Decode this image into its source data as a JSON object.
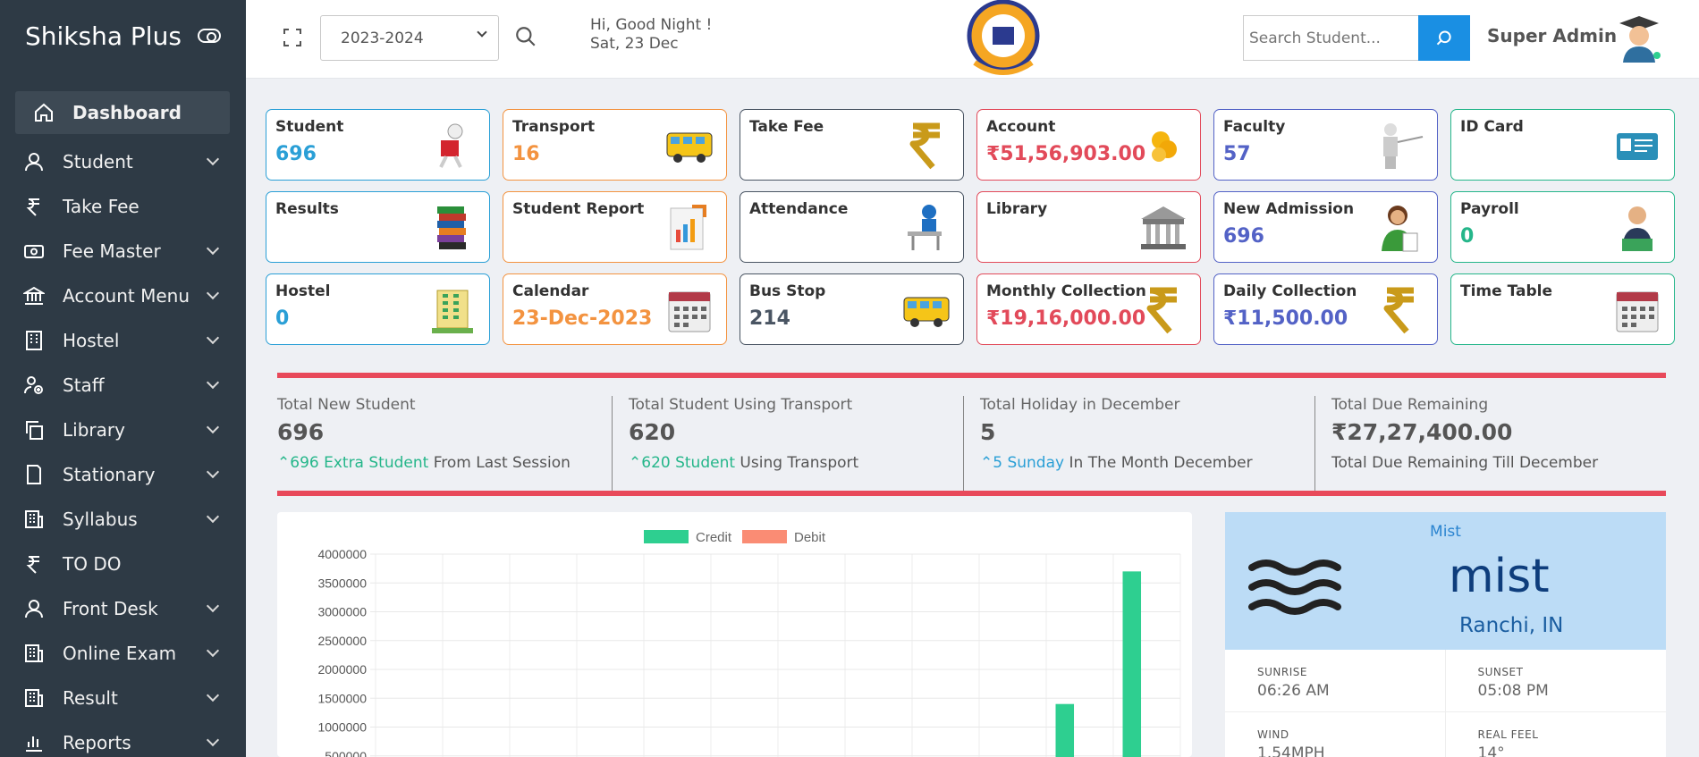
{
  "brand": {
    "title": "Shiksha Plus"
  },
  "sidebar": {
    "items": [
      {
        "label": "Dashboard",
        "icon": "home-icon",
        "active": true,
        "expandable": false
      },
      {
        "label": "Student",
        "icon": "user-icon",
        "expandable": true
      },
      {
        "label": "Take Fee",
        "icon": "rupee-icon",
        "expandable": false
      },
      {
        "label": "Fee Master",
        "icon": "money-icon",
        "expandable": true
      },
      {
        "label": "Account Menu",
        "icon": "bank-icon",
        "expandable": true
      },
      {
        "label": "Hostel",
        "icon": "building-icon",
        "expandable": true
      },
      {
        "label": "Staff",
        "icon": "staff-icon",
        "expandable": true
      },
      {
        "label": "Library",
        "icon": "copy-icon",
        "expandable": true
      },
      {
        "label": "Stationary",
        "icon": "notebook-icon",
        "expandable": true
      },
      {
        "label": "Syllabus",
        "icon": "grid-building-icon",
        "expandable": true
      },
      {
        "label": "TO DO",
        "icon": "rupee-icon",
        "expandable": false
      },
      {
        "label": "Front Desk",
        "icon": "user-icon",
        "expandable": true
      },
      {
        "label": "Online Exam",
        "icon": "grid-building-icon",
        "expandable": true
      },
      {
        "label": "Result",
        "icon": "grid-building-icon",
        "expandable": true
      },
      {
        "label": "Reports",
        "icon": "bar-chart-icon",
        "expandable": true
      }
    ]
  },
  "header": {
    "session": "2023-2024",
    "greeting_line1": "Hi, Good Night !",
    "greeting_line2": "Sat, 23 Dec",
    "search_placeholder": "Search Student...",
    "user_name": "Super Admin"
  },
  "cards": [
    {
      "title": "Student",
      "value": "696",
      "color": "blue",
      "icon": "student-reading-icon"
    },
    {
      "title": "Transport",
      "value": "16",
      "color": "orange",
      "icon": "bus-icon"
    },
    {
      "title": "Take Fee",
      "value": "",
      "color": "dark",
      "icon": "gold-rupee-icon"
    },
    {
      "title": "Account",
      "value": "₹51,56,903.00",
      "color": "red",
      "icon": "coins-icon"
    },
    {
      "title": "Faculty",
      "value": "57",
      "color": "indigo",
      "icon": "teacher-icon"
    },
    {
      "title": "ID Card",
      "value": "",
      "color": "green",
      "icon": "id-card-icon"
    },
    {
      "title": "Results",
      "value": "",
      "color": "blue",
      "icon": "books-icon"
    },
    {
      "title": "Student Report",
      "value": "",
      "color": "orange",
      "icon": "report-icon"
    },
    {
      "title": "Attendance",
      "value": "",
      "color": "dark",
      "icon": "desk-student-icon"
    },
    {
      "title": "Library",
      "value": "",
      "color": "red",
      "icon": "library-building-icon"
    },
    {
      "title": "New Admission",
      "value": "696",
      "color": "indigo",
      "icon": "admission-icon"
    },
    {
      "title": "Payroll",
      "value": "0",
      "color": "green",
      "icon": "payroll-icon"
    },
    {
      "title": "Hostel",
      "value": "0",
      "color": "blue",
      "icon": "hostel-icon"
    },
    {
      "title": "Calendar",
      "value": "23-Dec-2023",
      "color": "orange",
      "icon": "calendar-icon"
    },
    {
      "title": "Bus Stop",
      "value": "214",
      "color": "dark",
      "icon": "bus-icon"
    },
    {
      "title": "Monthly Collection",
      "value": "₹19,16,000.00",
      "color": "red",
      "icon": "gold-rupee-icon"
    },
    {
      "title": "Daily Collection",
      "value": "₹11,500.00",
      "color": "indigo",
      "icon": "gold-rupee-icon"
    },
    {
      "title": "Time Table",
      "value": "",
      "color": "green",
      "icon": "calendar-icon"
    }
  ],
  "stats": [
    {
      "title": "Total New Student",
      "value": "696",
      "highlight": "696 Extra Student",
      "note": " From Last Session",
      "hl": "green"
    },
    {
      "title": "Total Student Using Transport",
      "value": "620",
      "highlight": "620 Student",
      "note": " Using Transport",
      "hl": "green"
    },
    {
      "title": "Total Holiday in December",
      "value": "5",
      "highlight": "5 Sunday",
      "note": " In The Month December",
      "hl": "blue"
    },
    {
      "title": "Total Due Remaining",
      "value": "₹27,27,400.00",
      "highlight": "",
      "note": "Total Due Remaining Till December",
      "hl": "none"
    }
  ],
  "chart_data": {
    "type": "bar",
    "series": [
      {
        "name": "Credit",
        "color": "#2ecf90",
        "values": [
          0,
          0,
          0,
          0,
          0,
          0,
          0,
          0,
          0,
          0,
          1400000,
          3700000
        ]
      },
      {
        "name": "Debit",
        "color": "#fa8c74",
        "values": [
          0,
          0,
          0,
          0,
          0,
          0,
          0,
          0,
          0,
          0,
          0,
          0
        ]
      }
    ],
    "ylim": [
      0,
      4000000
    ],
    "yticks": [
      "4000000",
      "3500000",
      "3000000",
      "2500000",
      "2000000",
      "1500000",
      "1000000",
      "500000"
    ],
    "legend_position": "top-center",
    "grid": true
  },
  "weather": {
    "condition_small": "Mist",
    "condition": "mist",
    "location": "Ranchi, IN",
    "cells": [
      {
        "label": "SUNRISE",
        "value": "06:26 AM"
      },
      {
        "label": "SUNSET",
        "value": "05:08 PM"
      },
      {
        "label": "WIND",
        "value": "1.54MPH"
      },
      {
        "label": "REAL FEEL",
        "value": "14°"
      }
    ]
  }
}
